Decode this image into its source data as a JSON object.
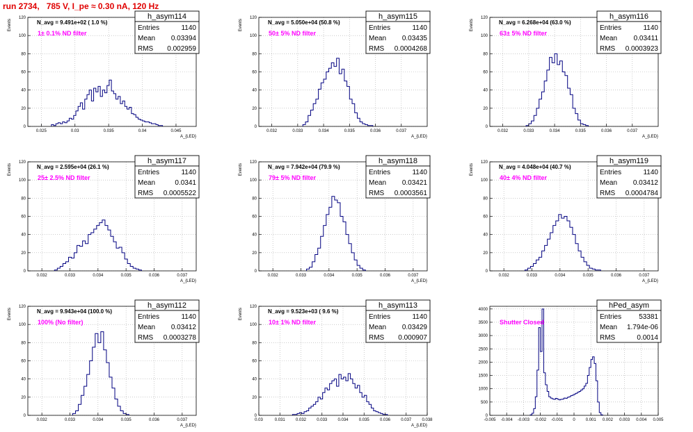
{
  "page": {
    "title": "run 2734,   785 V, I_pe ≈ 0.30 nA, 120 Hz"
  },
  "colors": {
    "title": "#e00000",
    "histogram": "#000080",
    "filter_label": "#ff00ff",
    "grid": "#aaaaaa"
  },
  "chart_data": [
    {
      "type": "bar",
      "name": "h_asym114",
      "annotation": "N_avg = 9.491e+02 ( 1.0 %)",
      "filter_label": "1± 0.1% ND filter",
      "stats": {
        "entries_label": "Entries",
        "entries": "1140",
        "mean_label": "Mean",
        "mean": "0.03394",
        "rms_label": "RMS",
        "rms": "0.002959"
      },
      "ylabel": "Events",
      "xlabel": "A_{LED}",
      "xlim": [
        0.023,
        0.048
      ],
      "ylim": [
        0,
        120
      ],
      "xticks": [
        0.025,
        0.03,
        0.035,
        0.04,
        0.045
      ],
      "xtick_labels": [
        "0.025",
        "0.03",
        "0.035",
        "0.04",
        "0.045"
      ],
      "yticks": [
        0,
        20,
        40,
        60,
        80,
        100,
        120
      ],
      "bins": {
        "start": 0.0265,
        "width": 0.00033,
        "values": [
          2,
          1,
          3,
          4,
          3,
          5,
          4,
          6,
          9,
          8,
          12,
          17,
          22,
          26,
          19,
          30,
          35,
          40,
          28,
          42,
          38,
          44,
          33,
          40,
          37,
          45,
          51,
          39,
          36,
          30,
          33,
          25,
          28,
          22,
          19,
          21,
          14,
          13,
          10,
          8,
          7,
          6,
          5,
          5,
          4,
          3,
          3,
          2,
          1,
          1
        ]
      }
    },
    {
      "type": "bar",
      "name": "h_asym115",
      "annotation": "N_avg = 5.050e+04 (50.8 %)",
      "filter_label": "50± 5% ND filter",
      "stats": {
        "entries_label": "Entries",
        "entries": "1140",
        "mean_label": "Mean",
        "mean": "0.03435",
        "rms_label": "RMS",
        "rms": "0.0004268"
      },
      "ylabel": "Events",
      "xlabel": "A_{LED}",
      "xlim": [
        0.0315,
        0.038
      ],
      "ylim": [
        0,
        120
      ],
      "xticks": [
        0.032,
        0.033,
        0.034,
        0.035,
        0.036,
        0.037
      ],
      "xtick_labels": [
        "0.032",
        "0.033",
        "0.034",
        "0.035",
        "0.036",
        "0.037"
      ],
      "yticks": [
        0,
        20,
        40,
        60,
        80,
        100,
        120
      ],
      "bins": {
        "start": 0.0332,
        "width": 0.0001,
        "values": [
          2,
          5,
          12,
          18,
          25,
          30,
          41,
          48,
          52,
          60,
          64,
          70,
          66,
          75,
          58,
          63,
          50,
          44,
          30,
          25,
          15,
          9,
          5,
          3,
          2,
          1,
          1
        ]
      }
    },
    {
      "type": "bar",
      "name": "h_asym116",
      "annotation": "N_avg = 6.268e+04 (63.0 %)",
      "filter_label": "63± 5% ND filter",
      "stats": {
        "entries_label": "Entries",
        "entries": "1140",
        "mean_label": "Mean",
        "mean": "0.03411",
        "rms_label": "RMS",
        "rms": "0.0003923"
      },
      "ylabel": "Events",
      "xlabel": "A_{LED}",
      "xlim": [
        0.0315,
        0.038
      ],
      "ylim": [
        0,
        120
      ],
      "xticks": [
        0.032,
        0.033,
        0.034,
        0.035,
        0.036,
        0.037
      ],
      "xtick_labels": [
        "0.032",
        "0.033",
        "0.034",
        "0.035",
        "0.036",
        "0.037"
      ],
      "yticks": [
        0,
        20,
        40,
        60,
        80,
        100,
        120
      ],
      "bins": {
        "start": 0.0329,
        "width": 0.0001,
        "values": [
          1,
          3,
          6,
          12,
          20,
          30,
          38,
          50,
          62,
          76,
          70,
          80,
          68,
          72,
          60,
          56,
          42,
          35,
          20,
          14,
          7,
          3,
          2,
          1
        ]
      }
    },
    {
      "type": "bar",
      "name": "h_asym117",
      "annotation": "N_avg = 2.595e+04 (26.1 %)",
      "filter_label": "25± 2.5% ND filter",
      "stats": {
        "entries_label": "Entries",
        "entries": "1140",
        "mean_label": "Mean",
        "mean": "0.0341",
        "rms_label": "RMS",
        "rms": "0.0005522"
      },
      "ylabel": "Events",
      "xlabel": "A_{LED}",
      "xlim": [
        0.0315,
        0.0375
      ],
      "ylim": [
        0,
        120
      ],
      "xticks": [
        0.032,
        0.033,
        0.034,
        0.035,
        0.036,
        0.037
      ],
      "xtick_labels": [
        "0.032",
        "0.033",
        "0.034",
        "0.035",
        "0.036",
        "0.037"
      ],
      "yticks": [
        0,
        20,
        40,
        60,
        80,
        100,
        120
      ],
      "bins": {
        "start": 0.03245,
        "width": 0.0001,
        "values": [
          1,
          3,
          5,
          8,
          10,
          15,
          14,
          20,
          28,
          27,
          33,
          30,
          40,
          42,
          46,
          50,
          53,
          56,
          50,
          45,
          38,
          32,
          25,
          26,
          20,
          13,
          8,
          5,
          3,
          2,
          1
        ]
      }
    },
    {
      "type": "bar",
      "name": "h_asym118",
      "annotation": "N_avg = 7.942e+04 (79.9 %)",
      "filter_label": "79± 5% ND filter",
      "stats": {
        "entries_label": "Entries",
        "entries": "1140",
        "mean_label": "Mean",
        "mean": "0.03421",
        "rms_label": "RMS",
        "rms": "0.0003561"
      },
      "ylabel": "Events",
      "xlabel": "A_{LED}",
      "xlim": [
        0.0315,
        0.0375
      ],
      "ylim": [
        0,
        120
      ],
      "xticks": [
        0.032,
        0.033,
        0.034,
        0.035,
        0.036,
        0.037
      ],
      "xtick_labels": [
        "0.032",
        "0.033",
        "0.034",
        "0.035",
        "0.036",
        "0.037"
      ],
      "yticks": [
        0,
        20,
        40,
        60,
        80,
        100,
        120
      ],
      "bins": {
        "start": 0.0332,
        "width": 0.0001,
        "values": [
          2,
          4,
          10,
          18,
          25,
          38,
          50,
          62,
          70,
          82,
          78,
          75,
          60,
          54,
          40,
          30,
          20,
          12,
          6,
          3,
          1
        ]
      }
    },
    {
      "type": "bar",
      "name": "h_asym119",
      "annotation": "N_avg = 4.048e+04 (40.7 %)",
      "filter_label": "40± 4% ND filter",
      "stats": {
        "entries_label": "Entries",
        "entries": "1140",
        "mean_label": "Mean",
        "mean": "0.03412",
        "rms_label": "RMS",
        "rms": "0.0004784"
      },
      "ylabel": "Events",
      "xlabel": "A_{LED}",
      "xlim": [
        0.0315,
        0.0375
      ],
      "ylim": [
        0,
        120
      ],
      "xticks": [
        0.032,
        0.033,
        0.034,
        0.035,
        0.036,
        0.037
      ],
      "xtick_labels": [
        "0.032",
        "0.033",
        "0.034",
        "0.035",
        "0.036",
        "0.037"
      ],
      "yticks": [
        0,
        20,
        40,
        60,
        80,
        100,
        120
      ],
      "bins": {
        "start": 0.03275,
        "width": 0.0001,
        "values": [
          1,
          3,
          5,
          8,
          12,
          15,
          22,
          28,
          35,
          42,
          50,
          55,
          62,
          58,
          60,
          55,
          48,
          40,
          30,
          22,
          15,
          10,
          6,
          3,
          2,
          1,
          1
        ]
      }
    },
    {
      "type": "bar",
      "name": "h_asym112",
      "annotation": "N_avg = 9.943e+04 (100.0 %)",
      "filter_label": "100% (No filter)",
      "stats": {
        "entries_label": "Entries",
        "entries": "1140",
        "mean_label": "Mean",
        "mean": "0.03412",
        "rms_label": "RMS",
        "rms": "0.0003278"
      },
      "ylabel": "Events",
      "xlabel": "A_{LED}",
      "xlim": [
        0.0315,
        0.0375
      ],
      "ylim": [
        0,
        120
      ],
      "xticks": [
        0.032,
        0.033,
        0.034,
        0.035,
        0.036,
        0.037
      ],
      "xtick_labels": [
        "0.032",
        "0.033",
        "0.034",
        "0.035",
        "0.036",
        "0.037"
      ],
      "yticks": [
        0,
        20,
        40,
        60,
        80,
        100,
        120
      ],
      "bins": {
        "start": 0.0331,
        "width": 0.0001,
        "values": [
          2,
          5,
          12,
          22,
          32,
          45,
          60,
          75,
          90,
          80,
          92,
          72,
          58,
          42,
          30,
          18,
          10,
          5,
          2,
          1
        ]
      }
    },
    {
      "type": "bar",
      "name": "h_asym113",
      "annotation": "N_avg = 9.523e+03 ( 9.6 %)",
      "filter_label": "10± 1% ND filter",
      "stats": {
        "entries_label": "Entries",
        "entries": "1140",
        "mean_label": "Mean",
        "mean": "0.03429",
        "rms_label": "RMS",
        "rms": "0.000907"
      },
      "ylabel": "Events",
      "xlabel": "A_{LED}",
      "xlim": [
        0.03,
        0.038
      ],
      "ylim": [
        0,
        120
      ],
      "xticks": [
        0.03,
        0.031,
        0.032,
        0.033,
        0.034,
        0.035,
        0.036,
        0.037,
        0.038
      ],
      "xtick_labels": [
        "0.03",
        "0.031",
        "0.032",
        "0.033",
        "0.034",
        "0.035",
        "0.036",
        "0.037",
        "0.038"
      ],
      "yticks": [
        0,
        20,
        40,
        60,
        80,
        100,
        120
      ],
      "bins": {
        "start": 0.0316,
        "width": 0.00011,
        "values": [
          1,
          1,
          2,
          3,
          2,
          4,
          5,
          8,
          10,
          12,
          15,
          20,
          18,
          25,
          30,
          28,
          35,
          38,
          40,
          32,
          45,
          40,
          42,
          38,
          46,
          40,
          35,
          30,
          33,
          25,
          20,
          22,
          15,
          12,
          8,
          5,
          4,
          3,
          2,
          1,
          1
        ]
      }
    },
    {
      "type": "bar",
      "name": "hPed_asym",
      "filter_label": "Shutter Closed",
      "stats": {
        "entries_label": "Entries",
        "entries": "53381",
        "mean_label": "Mean",
        "mean": "1.794e-06",
        "rms_label": "RMS",
        "rms": "0.0014"
      },
      "ylabel": "",
      "xlabel": "",
      "xlim": [
        -0.005,
        0.005
      ],
      "ylim": [
        0,
        4100
      ],
      "xticks": [
        -0.005,
        -0.004,
        -0.003,
        -0.002,
        -0.001,
        0,
        0.001,
        0.002,
        0.003,
        0.004,
        0.005
      ],
      "xtick_labels": [
        "-0.005",
        "-0.004",
        "-0.003",
        "-0.002",
        "-0.001",
        "0",
        "0.001",
        "0.002",
        "0.003",
        "0.004",
        "0.005"
      ],
      "yticks": [
        0,
        500,
        1000,
        1500,
        2000,
        2500,
        3000,
        3500,
        4000
      ],
      "bins": {
        "start": -0.0026,
        "width": 0.0001,
        "values": [
          20,
          80,
          250,
          700,
          1700,
          3300,
          2400,
          4000,
          1600,
          1150,
          900,
          700,
          650,
          620,
          600,
          640,
          610,
          580,
          600,
          610,
          650,
          640,
          680,
          700,
          740,
          760,
          800,
          830,
          870,
          900,
          950,
          1000,
          1100,
          1200,
          1500,
          1800,
          2100,
          2200,
          1950,
          1300,
          500,
          100,
          20
        ]
      }
    }
  ]
}
